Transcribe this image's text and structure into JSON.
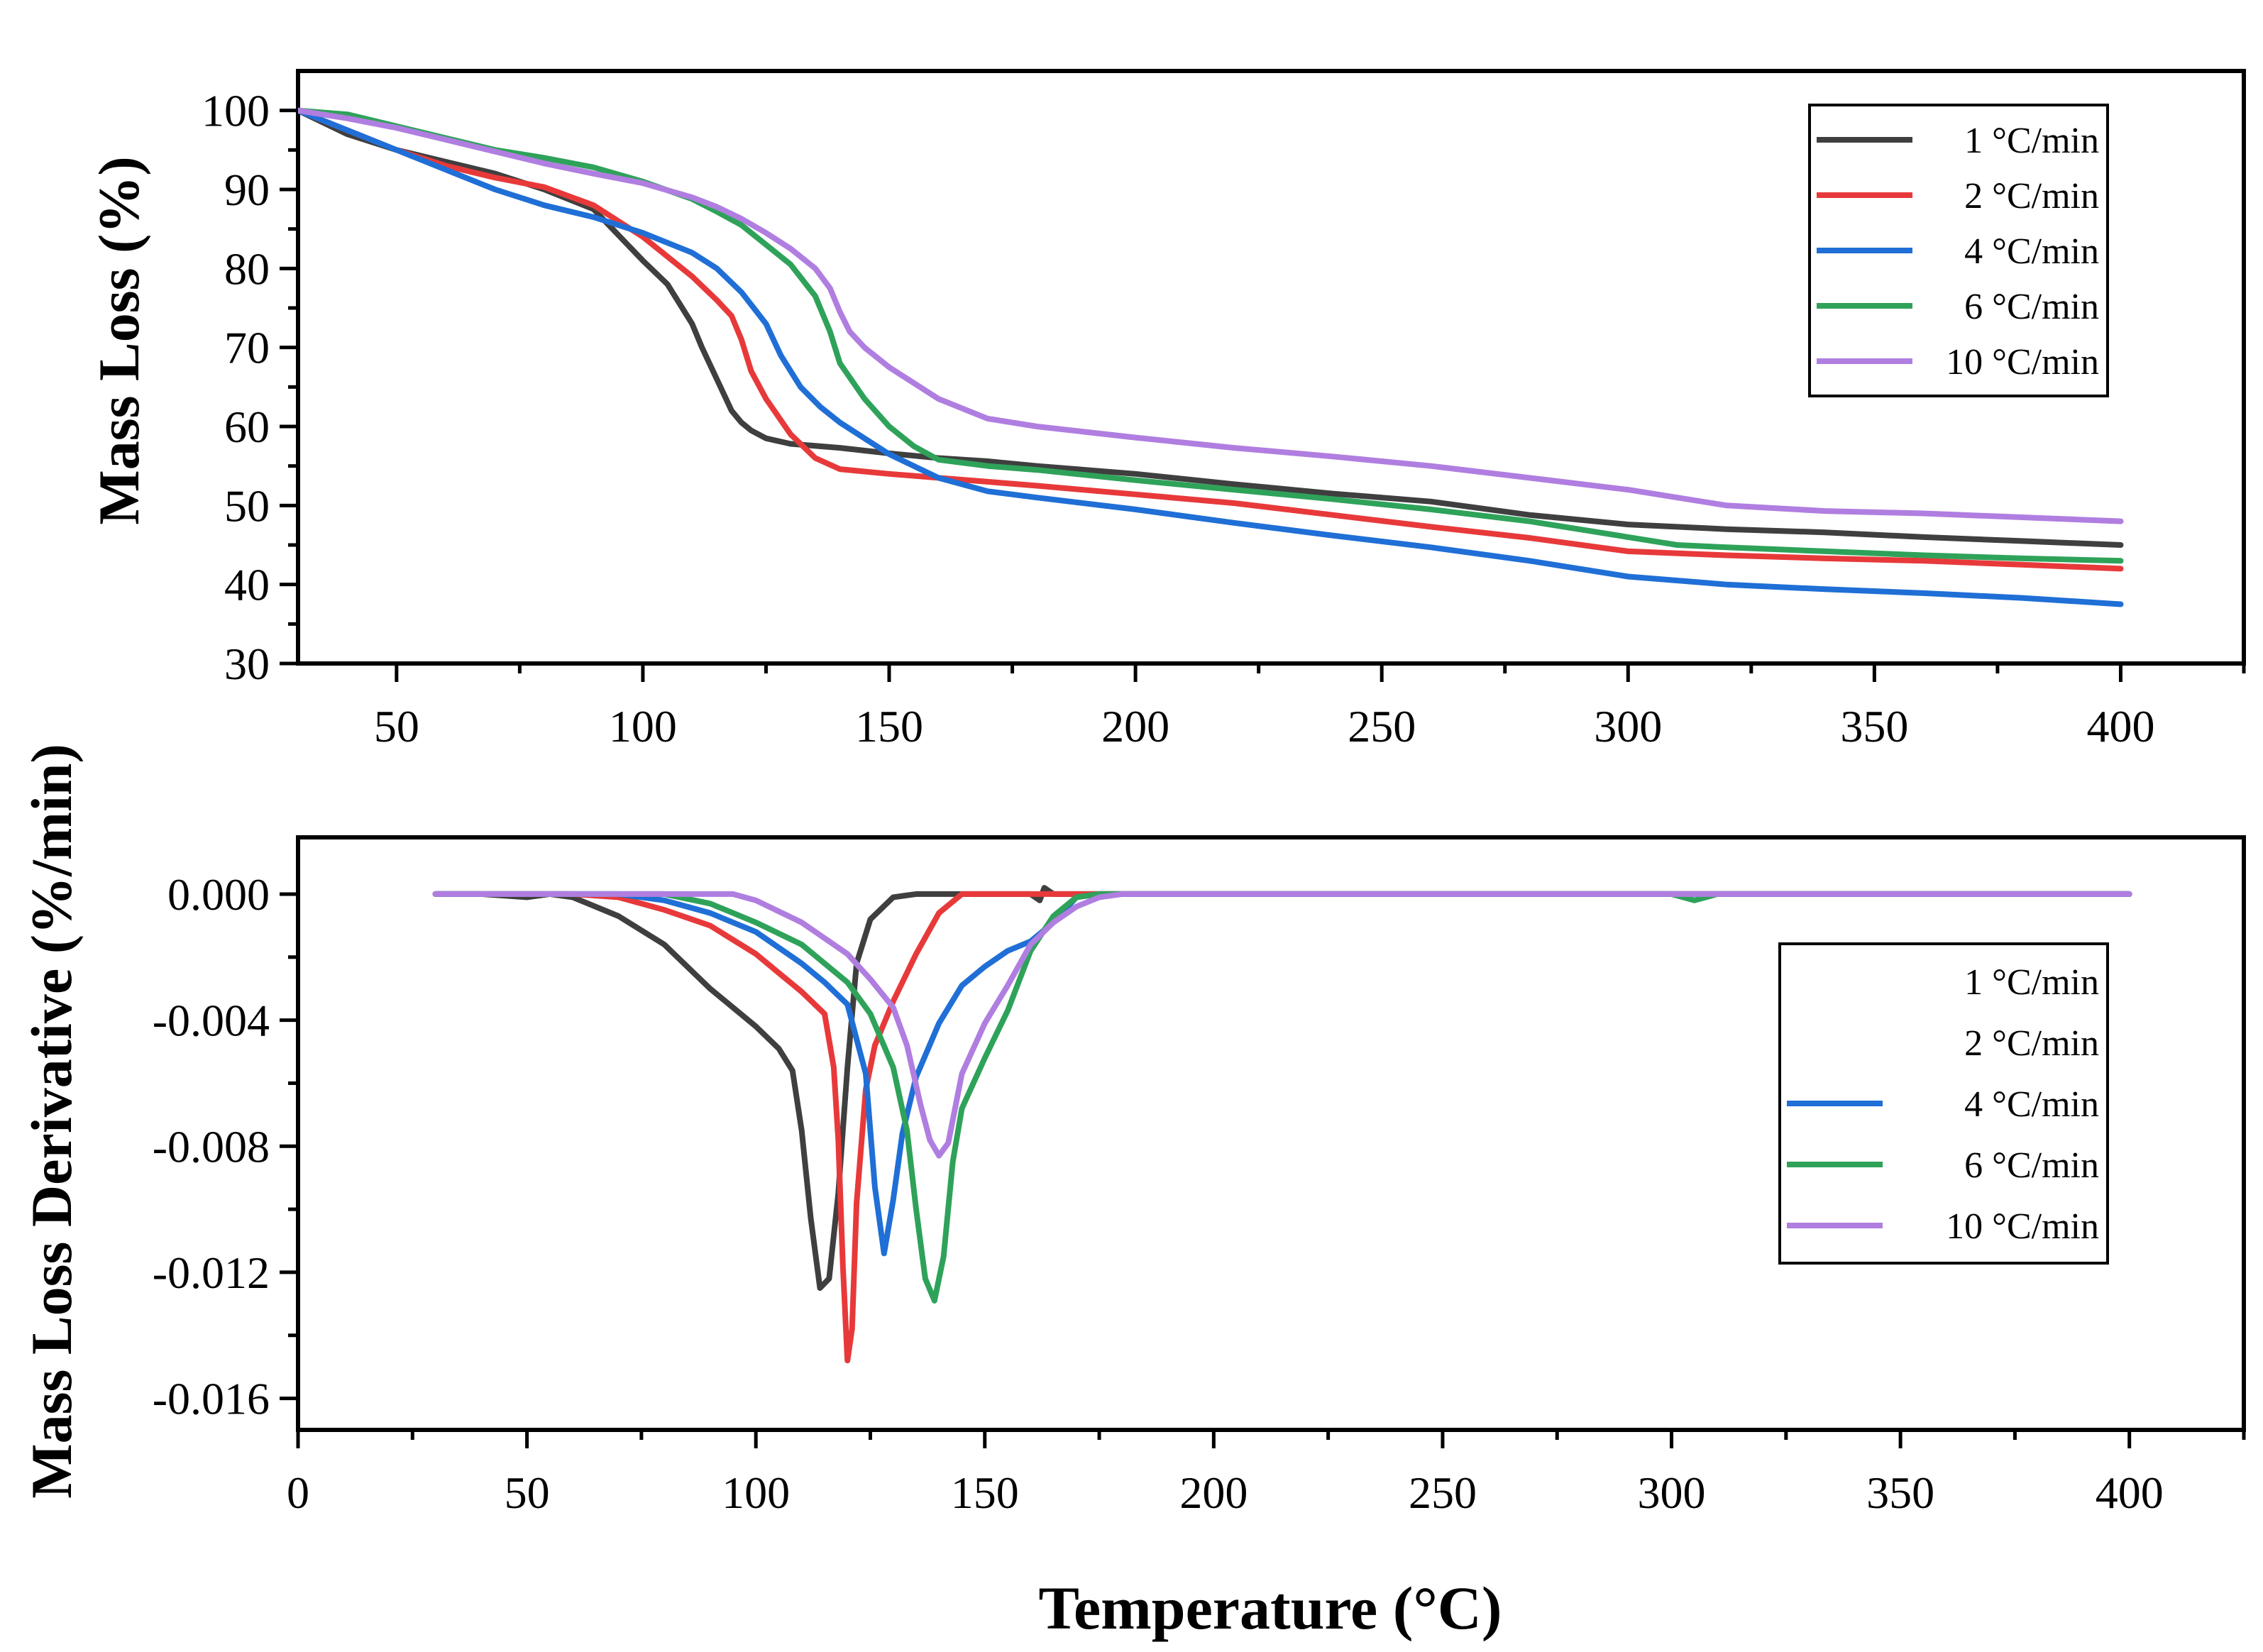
{
  "colors": {
    "1 °C/min": "#3f3f3f",
    "2 °C/min": "#e8393a",
    "4 °C/min": "#1f6fd6",
    "6 °C/min": "#2fa25a",
    "10 °C/min": "#b07ee0"
  },
  "chart_data": [
    {
      "type": "line",
      "ylabel": "Mass Loss (%)",
      "xlabel": "",
      "xlim": [
        30,
        425
      ],
      "ylim": [
        30,
        105
      ],
      "xticks": [
        50,
        100,
        150,
        200,
        250,
        300,
        350,
        400
      ],
      "xtick_labels": [
        "50",
        "100",
        "150",
        "200",
        "250",
        "300",
        "350",
        "400"
      ],
      "yticks": [
        30,
        40,
        50,
        60,
        70,
        80,
        90,
        100
      ],
      "ytick_labels": [
        "30",
        "40",
        "50",
        "60",
        "70",
        "80",
        "90",
        "100"
      ],
      "legend": [
        "1 °C/min",
        "2 °C/min",
        "4 °C/min",
        "6 °C/min",
        "10 °C/min"
      ],
      "legend_position": "top-right",
      "series": [
        {
          "name": "1 °C/min",
          "x": [
            30,
            40,
            50,
            60,
            70,
            80,
            90,
            100,
            105,
            110,
            112,
            115,
            118,
            120,
            122,
            125,
            130,
            140,
            150,
            160,
            170,
            180,
            200,
            220,
            240,
            260,
            280,
            300,
            320,
            340,
            360,
            380,
            400
          ],
          "y": [
            100,
            97,
            95,
            93.5,
            92,
            90,
            87.5,
            81,
            78,
            73,
            70,
            66,
            62,
            60.5,
            59.5,
            58.5,
            57.8,
            57.3,
            56.6,
            56,
            55.6,
            55,
            54,
            52.7,
            51.5,
            50.5,
            48.8,
            47.6,
            47,
            46.6,
            46,
            45.5,
            45
          ]
        },
        {
          "name": "2 °C/min",
          "x": [
            30,
            40,
            50,
            60,
            70,
            80,
            90,
            100,
            110,
            115,
            118,
            120,
            122,
            125,
            130,
            135,
            140,
            150,
            160,
            170,
            180,
            200,
            220,
            240,
            260,
            280,
            300,
            320,
            340,
            360,
            380,
            400
          ],
          "y": [
            100,
            97.5,
            95,
            93,
            91.5,
            90.3,
            88,
            84,
            79,
            76,
            74,
            71,
            67,
            63.5,
            59,
            56,
            54.6,
            54,
            53.5,
            53,
            52.5,
            51.4,
            50.3,
            48.8,
            47.3,
            45.9,
            44.2,
            43.7,
            43.3,
            43,
            42.5,
            42
          ]
        },
        {
          "name": "4 °C/min",
          "x": [
            30,
            40,
            50,
            60,
            70,
            80,
            90,
            100,
            110,
            115,
            120,
            125,
            128,
            132,
            136,
            140,
            145,
            150,
            160,
            170,
            180,
            200,
            220,
            240,
            260,
            280,
            290,
            300,
            320,
            340,
            360,
            380,
            400
          ],
          "y": [
            100,
            97.5,
            95,
            92.5,
            90,
            88,
            86.5,
            84.5,
            82,
            80,
            77,
            73,
            69,
            65,
            62.5,
            60.5,
            58.5,
            56.5,
            53.5,
            51.8,
            51,
            49.5,
            47.8,
            46.2,
            44.7,
            43,
            42,
            41,
            40,
            39.4,
            38.9,
            38.3,
            37.5
          ]
        },
        {
          "name": "6 °C/min",
          "x": [
            30,
            40,
            50,
            60,
            70,
            80,
            90,
            100,
            110,
            115,
            120,
            125,
            130,
            135,
            138,
            140,
            145,
            150,
            155,
            160,
            170,
            180,
            200,
            220,
            240,
            260,
            280,
            300,
            310,
            320,
            340,
            360,
            380,
            400
          ],
          "y": [
            100,
            99.5,
            98,
            96.5,
            95,
            94,
            92.8,
            91,
            88.8,
            87.2,
            85.5,
            83,
            80.5,
            76.5,
            72,
            68,
            63.5,
            60,
            57.5,
            55.8,
            55,
            54.5,
            53.2,
            52,
            50.8,
            49.5,
            48,
            46,
            45,
            44.7,
            44.2,
            43.7,
            43.3,
            43
          ]
        },
        {
          "name": "10 °C/min",
          "x": [
            30,
            40,
            50,
            60,
            70,
            80,
            90,
            100,
            110,
            115,
            120,
            125,
            130,
            135,
            138,
            140,
            142,
            145,
            150,
            155,
            160,
            170,
            180,
            200,
            220,
            240,
            260,
            280,
            300,
            310,
            320,
            340,
            360,
            380,
            400
          ],
          "y": [
            100,
            99,
            97.8,
            96.3,
            94.8,
            93.3,
            92,
            90.8,
            89,
            87.8,
            86.3,
            84.5,
            82.5,
            80,
            77.5,
            74.5,
            72,
            70,
            67.5,
            65.5,
            63.5,
            61,
            60,
            58.6,
            57.3,
            56.2,
            55,
            53.5,
            52,
            51,
            50,
            49.3,
            49,
            48.5,
            48
          ]
        }
      ]
    },
    {
      "type": "line",
      "ylabel": "Mass Loss Derivative (%/min)",
      "xlabel": "Temperature (°C)",
      "xlim": [
        0,
        425
      ],
      "ylim": [
        -0.017,
        0.0018
      ],
      "xticks": [
        0,
        50,
        100,
        150,
        200,
        250,
        300,
        350,
        400
      ],
      "xtick_labels": [
        "0",
        "50",
        "100",
        "150",
        "200",
        "250",
        "300",
        "350",
        "400"
      ],
      "yticks": [
        0.0,
        -0.004,
        -0.008,
        -0.012,
        -0.016
      ],
      "ytick_labels": [
        "0.000",
        "-0.004",
        "-0.008",
        "-0.012",
        "-0.016"
      ],
      "legend": [
        "1 °C/min",
        "2 °C/min",
        "4 °C/min",
        "6 °C/min",
        "10 °C/min"
      ],
      "legend_position": "right",
      "series": [
        {
          "name": "1 °C/min",
          "x": [
            30,
            40,
            50,
            55,
            60,
            70,
            80,
            90,
            100,
            105,
            108,
            110,
            112,
            114,
            116,
            118,
            120,
            122,
            125,
            130,
            135,
            140,
            150,
            160,
            162,
            163,
            165,
            170,
            200,
            250,
            300,
            350,
            400
          ],
          "y": [
            0,
            0,
            -0.0001,
            0,
            -0.0001,
            -0.0007,
            -0.0016,
            -0.003,
            -0.0042,
            -0.0049,
            -0.0056,
            -0.0075,
            -0.0103,
            -0.0125,
            -0.0122,
            -0.0095,
            -0.0055,
            -0.0022,
            -0.0008,
            -0.0001,
            0,
            0,
            0,
            0,
            -0.0002,
            0.0002,
            0,
            0,
            0,
            0,
            0,
            0,
            0
          ]
        },
        {
          "name": "2 °C/min",
          "x": [
            30,
            60,
            70,
            80,
            90,
            100,
            105,
            110,
            115,
            117,
            118,
            119,
            120,
            121,
            122,
            124,
            126,
            130,
            135,
            140,
            145,
            150,
            160,
            180,
            250,
            300,
            400
          ],
          "y": [
            0,
            0,
            -0.0001,
            -0.0005,
            -0.001,
            -0.0019,
            -0.0025,
            -0.0031,
            -0.0038,
            -0.0055,
            -0.0078,
            -0.0118,
            -0.0148,
            -0.0138,
            -0.0098,
            -0.0062,
            -0.0048,
            -0.0034,
            -0.0019,
            -0.0006,
            0,
            0,
            0,
            0,
            0,
            0,
            0
          ]
        },
        {
          "name": "4 °C/min",
          "x": [
            30,
            70,
            80,
            90,
            100,
            110,
            115,
            120,
            124,
            126,
            128,
            130,
            132,
            135,
            140,
            145,
            150,
            155,
            160,
            165,
            170,
            175,
            180,
            200,
            300,
            400
          ],
          "y": [
            0,
            0,
            -0.0002,
            -0.0006,
            -0.0012,
            -0.0022,
            -0.0028,
            -0.0035,
            -0.0057,
            -0.0093,
            -0.0114,
            -0.0097,
            -0.0076,
            -0.0058,
            -0.0041,
            -0.0029,
            -0.0023,
            -0.0018,
            -0.0015,
            -0.0009,
            -0.0001,
            0,
            0,
            0,
            0,
            0
          ]
        },
        {
          "name": "6 °C/min",
          "x": [
            30,
            80,
            90,
            100,
            110,
            120,
            125,
            130,
            133,
            135,
            137,
            139,
            141,
            143,
            145,
            150,
            155,
            160,
            165,
            170,
            175,
            180,
            200,
            300,
            305,
            310,
            400
          ],
          "y": [
            0,
            0,
            -0.0003,
            -0.0009,
            -0.0016,
            -0.0028,
            -0.0038,
            -0.0055,
            -0.0075,
            -0.01,
            -0.0122,
            -0.0129,
            -0.0115,
            -0.0085,
            -0.0068,
            -0.0052,
            -0.0037,
            -0.0018,
            -0.0007,
            -0.0001,
            0,
            0,
            0,
            0,
            -0.0002,
            0,
            0
          ]
        },
        {
          "name": "10 °C/min",
          "x": [
            30,
            90,
            95,
            100,
            110,
            120,
            125,
            130,
            133,
            136,
            138,
            140,
            142,
            145,
            150,
            155,
            160,
            165,
            170,
            175,
            180,
            200,
            300,
            400
          ],
          "y": [
            0,
            0,
            0,
            -0.0002,
            -0.0009,
            -0.0019,
            -0.0027,
            -0.0036,
            -0.0048,
            -0.0067,
            -0.0078,
            -0.0083,
            -0.0079,
            -0.0057,
            -0.0041,
            -0.0029,
            -0.0016,
            -0.0009,
            -0.0004,
            -0.0001,
            0,
            0,
            0,
            0
          ]
        }
      ]
    }
  ]
}
